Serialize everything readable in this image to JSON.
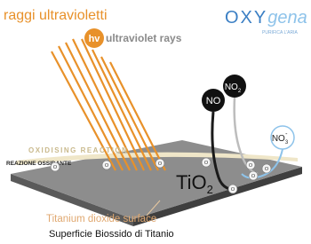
{
  "uv": {
    "title": "raggi ultravioletti",
    "badge": "hv",
    "label": "ultraviolet rays"
  },
  "logo": {
    "part1": "OXY",
    "part2": "gena",
    "tagline": "PURIFICA L'ARIA"
  },
  "reaction": {
    "label": "OXIDISING REACTION",
    "label_it": "REAZIONE OSSIDANTE"
  },
  "molecules": {
    "no": {
      "base": "NO"
    },
    "no2": {
      "base": "NO",
      "sub": "2"
    },
    "no3": {
      "base": "NO",
      "sub": "3",
      "sup": "-"
    }
  },
  "particles": [
    "O",
    "O",
    "O",
    "O",
    "O",
    "O",
    "O",
    "O"
  ],
  "surface": {
    "base": "TiO",
    "sub": "2",
    "label": "Titanium dioxide surface",
    "label_it": "Superficie Biossido di Titanio"
  }
}
